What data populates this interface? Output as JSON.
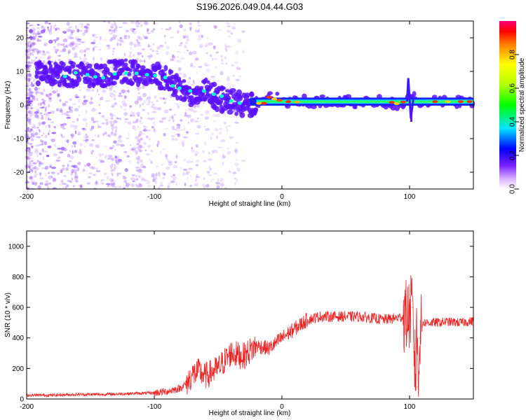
{
  "title": "S196.2026.049.04.44.G03",
  "chart_data": [
    {
      "type": "heatmap",
      "name": "spectrogram",
      "xlabel": "Height of straight line (km)",
      "ylabel": "Frequency (Hz)",
      "xlim": [
        -200,
        150
      ],
      "ylim": [
        -25,
        25
      ],
      "xticks": [
        -200,
        -100,
        0,
        100
      ],
      "xtick_labels": [
        "-200",
        "-100",
        "0",
        "100"
      ],
      "yticks": [
        -20,
        -10,
        0,
        10,
        20
      ],
      "ytick_labels": [
        "-20",
        "-10",
        "0",
        "10",
        "20"
      ],
      "ridge": {
        "x": [
          -190,
          -175,
          -160,
          -145,
          -130,
          -120,
          -110,
          -100,
          -90,
          -80,
          -70,
          -60,
          -50,
          -40,
          -30,
          -20,
          -15,
          -10,
          -5,
          0,
          10,
          20,
          40,
          60,
          80,
          90,
          98,
          102,
          105,
          110,
          120,
          130,
          140,
          150
        ],
        "y": [
          9,
          9.5,
          9,
          8.5,
          10,
          10,
          9.5,
          9,
          8,
          5,
          3,
          5,
          2,
          1,
          0,
          0.5,
          1,
          2.5,
          2,
          1.5,
          1,
          1,
          1,
          1,
          1,
          0.5,
          1,
          3,
          0,
          1,
          1,
          1,
          1,
          1
        ]
      },
      "colorbar": {
        "label": "Normalized spectral amplitude",
        "range": [
          0,
          1
        ],
        "ticks": [
          0.0,
          0.2,
          0.4,
          0.6,
          0.8
        ],
        "tick_labels": [
          "0.0",
          "0.2",
          "0.4",
          "0.6",
          "0.8"
        ]
      }
    },
    {
      "type": "line",
      "name": "snr",
      "xlabel": "Height of straight line (km)",
      "ylabel": "SNR (10 * v/v)",
      "xlim": [
        -200,
        150
      ],
      "ylim": [
        0,
        1100
      ],
      "xticks": [
        -200,
        -100,
        0,
        100
      ],
      "xtick_labels": [
        "-200",
        "-100",
        "0",
        "100"
      ],
      "yticks": [
        0,
        200,
        400,
        600,
        800,
        1000
      ],
      "ytick_labels": [
        "0",
        "200",
        "400",
        "600",
        "800",
        "1000"
      ],
      "series": [
        {
          "name": "SNR",
          "color": "#ee2222",
          "x": [
            -200,
            -180,
            -160,
            -140,
            -120,
            -100,
            -90,
            -80,
            -75,
            -70,
            -65,
            -60,
            -50,
            -40,
            -30,
            -20,
            -10,
            0,
            10,
            20,
            30,
            40,
            60,
            80,
            90,
            95,
            100,
            102,
            104,
            106,
            108,
            110,
            120,
            130,
            140,
            150
          ],
          "y": [
            25,
            25,
            30,
            30,
            35,
            40,
            50,
            70,
            100,
            160,
            180,
            150,
            200,
            300,
            280,
            350,
            330,
            400,
            460,
            520,
            540,
            540,
            540,
            520,
            530,
            540,
            550,
            600,
            250,
            80,
            400,
            500,
            500,
            505,
            500,
            510
          ]
        }
      ]
    }
  ]
}
